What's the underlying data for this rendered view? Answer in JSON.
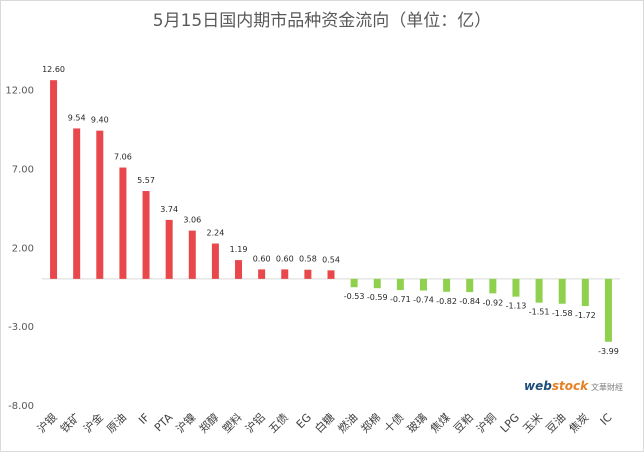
{
  "chart_data": {
    "type": "bar",
    "title": "5月15日国内期市品种资金流向（单位：亿）",
    "xlabel": "",
    "ylabel": "",
    "ylim": [
      -8,
      13.5
    ],
    "yticks": [
      12.0,
      7.0,
      2.0,
      -3.0,
      -8.0
    ],
    "ytick_labels": [
      "12.00",
      "7.00",
      "2.00",
      "-3.00",
      "-8.00"
    ],
    "grid": false,
    "legend": "none",
    "categories": [
      "沪银",
      "铁矿",
      "沪金",
      "原油",
      "IF",
      "PTA",
      "沪镍",
      "郑醇",
      "塑料",
      "沪铝",
      "五债",
      "EG",
      "白糖",
      "燃油",
      "郑棉",
      "十债",
      "玻璃",
      "焦煤",
      "豆粕",
      "沪铜",
      "LPG",
      "玉米",
      "豆油",
      "焦炭",
      "IC"
    ],
    "values": [
      12.6,
      9.54,
      9.4,
      7.06,
      5.57,
      3.74,
      3.06,
      2.24,
      1.19,
      0.6,
      0.6,
      0.58,
      0.54,
      -0.53,
      -0.59,
      -0.71,
      -0.74,
      -0.82,
      -0.84,
      -0.92,
      -1.13,
      -1.51,
      -1.58,
      -1.72,
      -3.99
    ],
    "value_labels": [
      "12.60",
      "9.54",
      "9.40",
      "7.06",
      "5.57",
      "3.74",
      "3.06",
      "2.24",
      "1.19",
      "0.60",
      "0.60",
      "0.58",
      "0.54",
      "-0.53",
      "-0.59",
      "-0.71",
      "-0.74",
      "-0.82",
      "-0.84",
      "-0.92",
      "-1.13",
      "-1.51",
      "-1.58",
      "-1.72",
      "-3.99"
    ],
    "colors": {
      "positive": "#e8474c",
      "negative": "#8fd14f"
    }
  },
  "watermark": {
    "brand_main": "web",
    "brand_highlight": "stock",
    "subtitle": "文華財經"
  }
}
